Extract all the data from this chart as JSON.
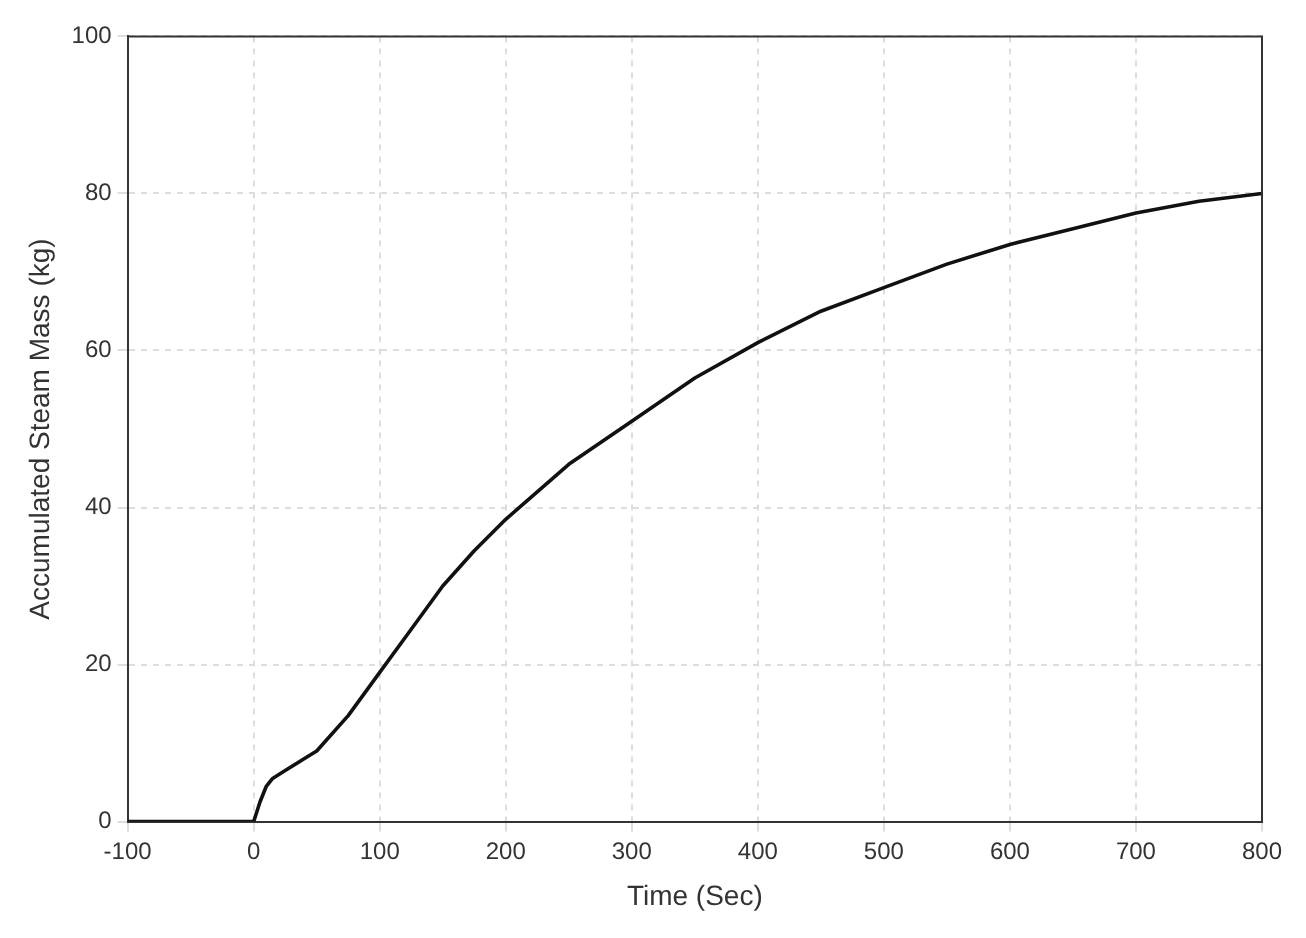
{
  "chart_data": {
    "type": "line",
    "xlabel": "Time (Sec)",
    "ylabel": "Accumulated Steam Mass (kg)",
    "x": [
      -100,
      0,
      5,
      10,
      15,
      25,
      40,
      50,
      75,
      100,
      125,
      150,
      175,
      200,
      250,
      300,
      350,
      400,
      450,
      500,
      550,
      600,
      650,
      700,
      750,
      800
    ],
    "series": [
      {
        "color": "#111111",
        "values": [
          0,
          0,
          2.5,
          4.5,
          5.5,
          6.5,
          8,
          9,
          13.5,
          19,
          24.5,
          30,
          34.5,
          38.5,
          45.5,
          51,
          56.5,
          61,
          65,
          68,
          71,
          73.5,
          75.5,
          77.5,
          79,
          80
        ]
      }
    ],
    "xlim": [
      -100,
      800
    ],
    "xticks": [
      -100,
      0,
      100,
      200,
      300,
      400,
      500,
      600,
      700,
      800
    ],
    "ylim": [
      0,
      100
    ],
    "yticks": [
      0,
      20,
      40,
      60,
      80,
      100
    ],
    "grid": true,
    "legend": false,
    "marker": "none",
    "line_style": "solid"
  }
}
